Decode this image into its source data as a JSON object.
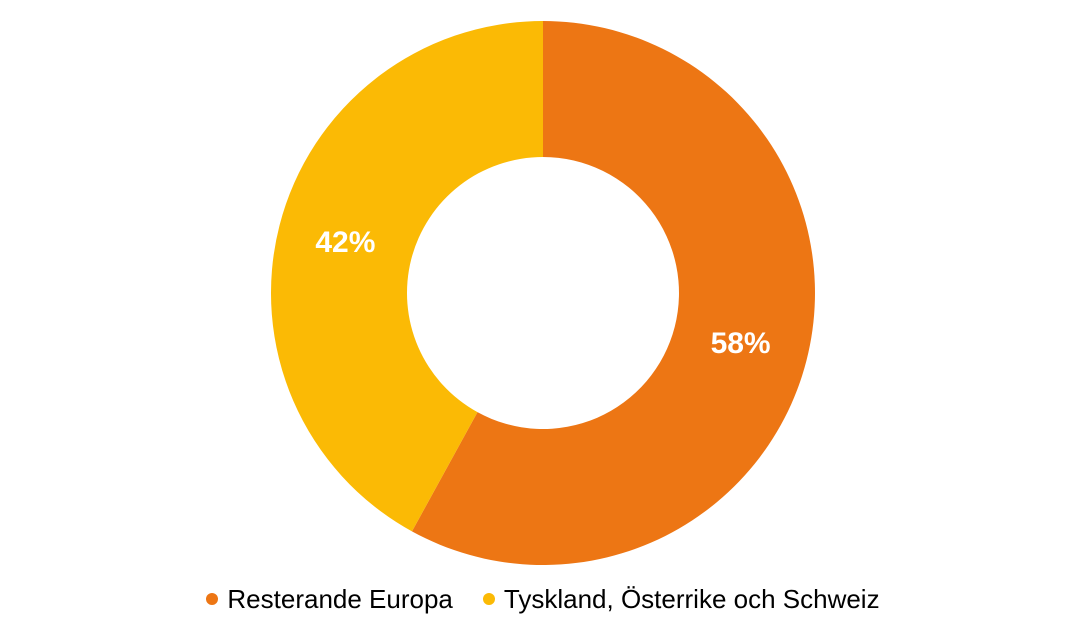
{
  "chart_data": {
    "type": "pie",
    "subtype": "donut",
    "labels": [
      "Resterande Europa",
      "Tyskland, Österrike och Schweiz"
    ],
    "values": [
      58,
      42
    ],
    "data_labels": [
      "58%",
      "42%"
    ],
    "colors": [
      "#ED7614",
      "#FBBA05"
    ],
    "start_angle_deg": 0,
    "direction": "clockwise",
    "inner_radius_ratio": 0.5,
    "data_label_color": "#ffffff",
    "legend_position": "bottom",
    "background": "#ffffff",
    "title": ""
  },
  "legend": {
    "items": [
      {
        "label": "Resterande Europa",
        "color": "#ED7614"
      },
      {
        "label": "Tyskland, Österrike och Schweiz",
        "color": "#FBBA05"
      }
    ]
  }
}
